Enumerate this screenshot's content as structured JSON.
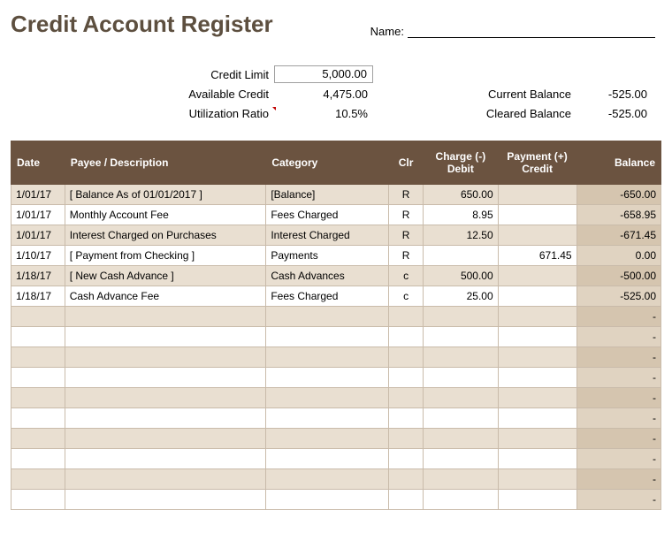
{
  "title": "Credit Account Register",
  "name_label": "Name:",
  "summary": {
    "credit_limit_label": "Credit Limit",
    "credit_limit_value": "5,000.00",
    "available_credit_label": "Available Credit",
    "available_credit_value": "4,475.00",
    "utilization_ratio_label": "Utilization Ratio",
    "utilization_ratio_value": "10.5%",
    "current_balance_label": "Current Balance",
    "current_balance_value": "-525.00",
    "cleared_balance_label": "Cleared Balance",
    "cleared_balance_value": "-525.00"
  },
  "table": {
    "columns": {
      "date": "Date",
      "payee": "Payee / Description",
      "category": "Category",
      "clr": "Clr",
      "debit": "Charge (-) Debit",
      "credit": "Payment (+) Credit",
      "balance": "Balance"
    },
    "rows": [
      {
        "date": "1/01/17",
        "payee": "[ Balance As of 01/01/2017 ]",
        "category": "[Balance]",
        "clr": "R",
        "debit": "650.00",
        "credit": "",
        "balance": "-650.00"
      },
      {
        "date": "1/01/17",
        "payee": "Monthly Account Fee",
        "category": "Fees Charged",
        "clr": "R",
        "debit": "8.95",
        "credit": "",
        "balance": "-658.95"
      },
      {
        "date": "1/01/17",
        "payee": "Interest Charged on Purchases",
        "category": "Interest Charged",
        "clr": "R",
        "debit": "12.50",
        "credit": "",
        "balance": "-671.45"
      },
      {
        "date": "1/10/17",
        "payee": "[ Payment from Checking ]",
        "category": "Payments",
        "clr": "R",
        "debit": "",
        "credit": "671.45",
        "balance": "0.00"
      },
      {
        "date": "1/18/17",
        "payee": "[ New Cash Advance ]",
        "category": "Cash Advances",
        "clr": "c",
        "debit": "500.00",
        "credit": "",
        "balance": "-500.00"
      },
      {
        "date": "1/18/17",
        "payee": "Cash Advance Fee",
        "category": "Fees Charged",
        "clr": "c",
        "debit": "25.00",
        "credit": "",
        "balance": "-525.00"
      },
      {
        "date": "",
        "payee": "",
        "category": "",
        "clr": "",
        "debit": "",
        "credit": "",
        "balance": "-"
      },
      {
        "date": "",
        "payee": "",
        "category": "",
        "clr": "",
        "debit": "",
        "credit": "",
        "balance": "-"
      },
      {
        "date": "",
        "payee": "",
        "category": "",
        "clr": "",
        "debit": "",
        "credit": "",
        "balance": "-"
      },
      {
        "date": "",
        "payee": "",
        "category": "",
        "clr": "",
        "debit": "",
        "credit": "",
        "balance": "-"
      },
      {
        "date": "",
        "payee": "",
        "category": "",
        "clr": "",
        "debit": "",
        "credit": "",
        "balance": "-"
      },
      {
        "date": "",
        "payee": "",
        "category": "",
        "clr": "",
        "debit": "",
        "credit": "",
        "balance": "-"
      },
      {
        "date": "",
        "payee": "",
        "category": "",
        "clr": "",
        "debit": "",
        "credit": "",
        "balance": "-"
      },
      {
        "date": "",
        "payee": "",
        "category": "",
        "clr": "",
        "debit": "",
        "credit": "",
        "balance": "-"
      },
      {
        "date": "",
        "payee": "",
        "category": "",
        "clr": "",
        "debit": "",
        "credit": "",
        "balance": "-"
      },
      {
        "date": "",
        "payee": "",
        "category": "",
        "clr": "",
        "debit": "",
        "credit": "",
        "balance": "-"
      }
    ],
    "header_bg": "#6b5340",
    "header_fg": "#ffffff",
    "row_bg": "#ffffff",
    "alt_row_bg": "#e9dfd1",
    "balance_bg": "#e0d3c1",
    "balance_alt_bg": "#d5c5af",
    "border_color": "#c9bbaa"
  }
}
